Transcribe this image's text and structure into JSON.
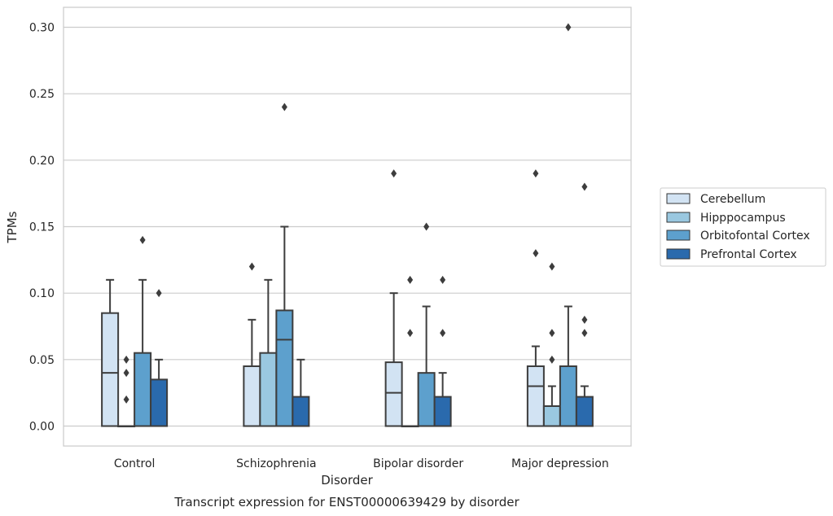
{
  "chart_data": {
    "type": "box",
    "title": "Transcript expression for ENST00000639429 by disorder",
    "xlabel": "Disorder",
    "ylabel": "TPMs",
    "ylim": [
      -0.015,
      0.315
    ],
    "yticks": [
      0.0,
      0.05,
      0.1,
      0.15,
      0.2,
      0.25,
      0.3
    ],
    "ytick_labels": [
      "0.00",
      "0.05",
      "0.10",
      "0.15",
      "0.20",
      "0.25",
      "0.30"
    ],
    "categories": [
      "Control",
      "Schizophrenia",
      "Bipolar disorder",
      "Major depression"
    ],
    "grid": "horizontal",
    "legend": {
      "placement": "right"
    },
    "series": [
      {
        "name": "Cerebellum",
        "color": "#d2e3f3",
        "boxes": [
          {
            "whislo": 0.0,
            "q1": 0.0,
            "med": 0.04,
            "q3": 0.085,
            "whishi": 0.11,
            "fliers": []
          },
          {
            "whislo": 0.0,
            "q1": 0.0,
            "med": 0.0,
            "q3": 0.045,
            "whishi": 0.08,
            "fliers": [
              0.12
            ]
          },
          {
            "whislo": 0.0,
            "q1": 0.0,
            "med": 0.025,
            "q3": 0.048,
            "whishi": 0.1,
            "fliers": [
              0.19
            ]
          },
          {
            "whislo": 0.0,
            "q1": 0.0,
            "med": 0.03,
            "q3": 0.045,
            "whishi": 0.06,
            "fliers": [
              0.13,
              0.19
            ]
          }
        ]
      },
      {
        "name": "Hipppocampus",
        "color": "#9ac8e0",
        "boxes": [
          {
            "whislo": 0.0,
            "q1": 0.0,
            "med": 0.0,
            "q3": 0.0,
            "whishi": 0.0,
            "fliers": [
              0.02,
              0.04,
              0.05
            ]
          },
          {
            "whislo": 0.0,
            "q1": 0.0,
            "med": 0.0,
            "q3": 0.055,
            "whishi": 0.11,
            "fliers": []
          },
          {
            "whislo": 0.0,
            "q1": 0.0,
            "med": 0.0,
            "q3": 0.0,
            "whishi": 0.0,
            "fliers": [
              0.07,
              0.11
            ]
          },
          {
            "whislo": 0.0,
            "q1": 0.0,
            "med": 0.0,
            "q3": 0.015,
            "whishi": 0.03,
            "fliers": [
              0.05,
              0.07,
              0.12
            ]
          }
        ]
      },
      {
        "name": "Orbitofontal Cortex",
        "color": "#5da0cd",
        "boxes": [
          {
            "whislo": 0.0,
            "q1": 0.0,
            "med": 0.0,
            "q3": 0.055,
            "whishi": 0.11,
            "fliers": [
              0.14
            ]
          },
          {
            "whislo": 0.0,
            "q1": 0.0,
            "med": 0.065,
            "q3": 0.087,
            "whishi": 0.15,
            "fliers": [
              0.24
            ]
          },
          {
            "whislo": 0.0,
            "q1": 0.0,
            "med": 0.0,
            "q3": 0.04,
            "whishi": 0.09,
            "fliers": [
              0.15
            ]
          },
          {
            "whislo": 0.0,
            "q1": 0.0,
            "med": 0.0,
            "q3": 0.045,
            "whishi": 0.09,
            "fliers": [
              0.3
            ]
          }
        ]
      },
      {
        "name": "Prefrontal Cortex",
        "color": "#2a6aad",
        "boxes": [
          {
            "whislo": 0.0,
            "q1": 0.0,
            "med": 0.0,
            "q3": 0.035,
            "whishi": 0.05,
            "fliers": [
              0.1
            ]
          },
          {
            "whislo": 0.0,
            "q1": 0.0,
            "med": 0.0,
            "q3": 0.022,
            "whishi": 0.05,
            "fliers": []
          },
          {
            "whislo": 0.0,
            "q1": 0.0,
            "med": 0.0,
            "q3": 0.022,
            "whishi": 0.04,
            "fliers": [
              0.07,
              0.11
            ]
          },
          {
            "whislo": 0.0,
            "q1": 0.0,
            "med": 0.0,
            "q3": 0.022,
            "whishi": 0.03,
            "fliers": [
              0.07,
              0.08,
              0.18
            ]
          }
        ]
      }
    ]
  }
}
